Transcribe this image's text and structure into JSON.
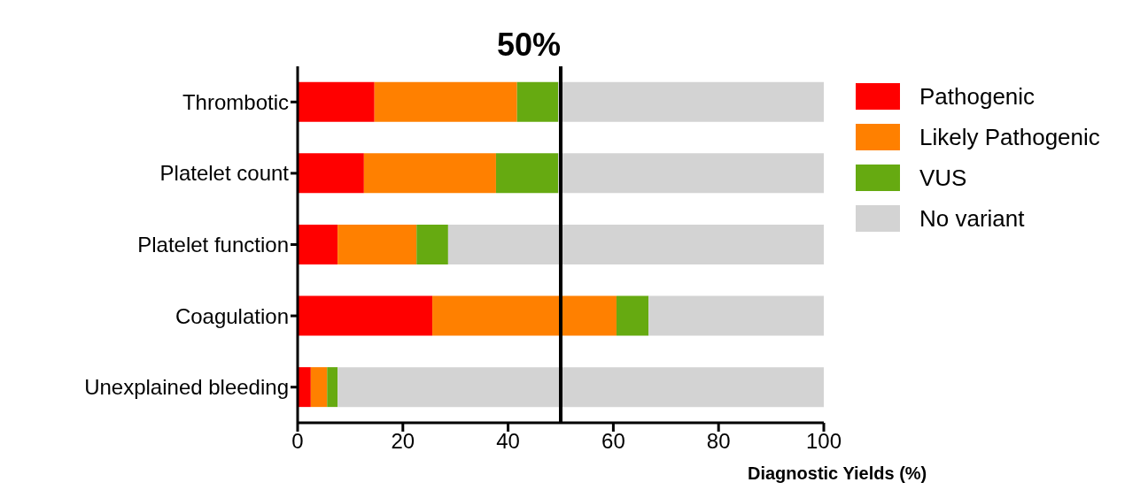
{
  "chart_data": {
    "type": "bar",
    "orientation": "horizontal",
    "stacked": true,
    "xlabel": "Diagnostic Yields (%)",
    "categories": [
      "Thrombotic",
      "Platelet count",
      "Platelet function",
      "Coagulation",
      "Unexplained bleeding"
    ],
    "series": [
      {
        "name": "Pathogenic",
        "color": "#ff0000",
        "values": [
          14.6,
          12.6,
          7.6,
          25.6,
          2.5
        ]
      },
      {
        "name": "Likely Pathogenic",
        "color": "#ff8000",
        "values": [
          27.1,
          25.1,
          15,
          35,
          3.1
        ]
      },
      {
        "name": "VUS",
        "color": "#66aa11",
        "values": [
          7.8,
          11.8,
          6,
          6.1,
          2
        ]
      },
      {
        "name": "No variant",
        "color": "#d3d3d3",
        "values": [
          50.5,
          50.5,
          71.4,
          33.3,
          92.4
        ]
      }
    ],
    "xlim": [
      0,
      100
    ],
    "xticks": [
      0,
      20,
      40,
      60,
      80,
      100
    ],
    "ref_lines": [
      {
        "axis": "x",
        "value": 50,
        "label": "50%",
        "color": "#000000"
      }
    ],
    "grid": false,
    "legend": "top right"
  }
}
